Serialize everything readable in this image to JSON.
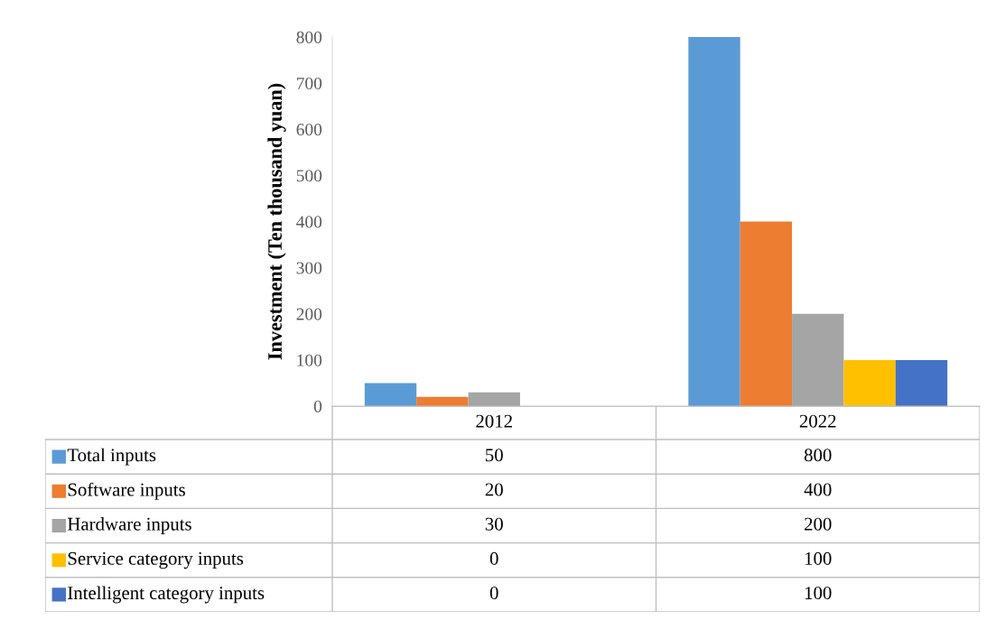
{
  "chart_data": {
    "type": "bar",
    "ylabel": "Investment (Ten thousand yuan)",
    "categories": [
      "2012",
      "2022"
    ],
    "series": [
      {
        "name": "Total inputs",
        "color": "#5b9bd5",
        "values": [
          50,
          800
        ]
      },
      {
        "name": "Software inputs",
        "color": "#ed7d31",
        "values": [
          20,
          400
        ]
      },
      {
        "name": "Hardware inputs",
        "color": "#a5a5a5",
        "values": [
          30,
          200
        ]
      },
      {
        "name": "Service category inputs",
        "color": "#ffc000",
        "values": [
          0,
          100
        ]
      },
      {
        "name": "Intelligent category inputs",
        "color": "#4472c4",
        "values": [
          0,
          100
        ]
      }
    ],
    "ylim": [
      0,
      800
    ],
    "yticks": [
      0,
      100,
      200,
      300,
      400,
      500,
      600,
      700,
      800
    ],
    "grid": false,
    "legend": "bottom left",
    "data_labels": true
  }
}
